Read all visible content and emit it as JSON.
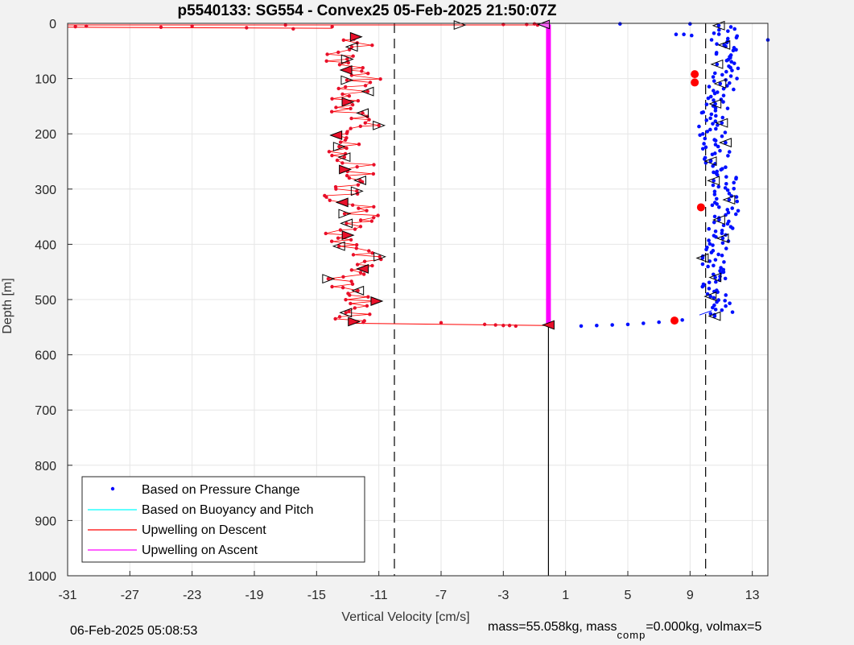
{
  "chart_data": {
    "type": "scatter",
    "title": "p5540133: SG554 - Convex25 05-Feb-2025 21:50:07Z",
    "xlabel": "Vertical Velocity [cm/s]",
    "ylabel": "Depth [m]",
    "xlim": [
      -31,
      14
    ],
    "ylim": [
      0,
      1000
    ],
    "y_reversed": true,
    "grid": true,
    "x_ticks": [
      -31,
      -27,
      -23,
      -19,
      -15,
      -11,
      -7,
      -3,
      1,
      5,
      9,
      13
    ],
    "y_ticks": [
      0,
      100,
      200,
      300,
      400,
      500,
      600,
      700,
      800,
      900,
      1000
    ],
    "legend_location": "bottom-left",
    "legend": [
      {
        "label": "Based on Pressure Change",
        "color": "#0000ff",
        "style": "dot"
      },
      {
        "label": "Based on Buoyancy and Pitch",
        "color": "#00ffff",
        "style": "line"
      },
      {
        "label": "Upwelling on Descent",
        "color": "#ff0000",
        "style": "line"
      },
      {
        "label": "Upwelling on Ascent",
        "color": "#ff00ff",
        "style": "line"
      }
    ],
    "reference_lines_x": [
      -10,
      10
    ],
    "descent_mean_x": -12.7,
    "descent_amplitude": 1.2,
    "ascent_mean_x": 10.9,
    "ascent_amplitude": 0.9,
    "surface_descent_points": [
      {
        "x": -30.5,
        "y": 6
      },
      {
        "x": -29.8,
        "y": 5
      },
      {
        "x": -25,
        "y": 7
      },
      {
        "x": -23,
        "y": 5
      },
      {
        "x": -19.5,
        "y": 8
      },
      {
        "x": -17,
        "y": 3
      },
      {
        "x": -16.5,
        "y": 10
      },
      {
        "x": -14,
        "y": 6
      },
      {
        "x": -3,
        "y": 2
      },
      {
        "x": -1.5,
        "y": 2
      },
      {
        "x": -1,
        "y": 1
      },
      {
        "x": -0.8,
        "y": 3
      }
    ],
    "bottom_descent_points": [
      {
        "x": -12,
        "y": 541
      },
      {
        "x": -7,
        "y": 542
      },
      {
        "x": -4.2,
        "y": 545
      },
      {
        "x": -3.5,
        "y": 546
      },
      {
        "x": -3,
        "y": 547
      },
      {
        "x": -2.6,
        "y": 547
      },
      {
        "x": -2.2,
        "y": 548
      }
    ],
    "ascent_bottom_points": [
      {
        "x": 2,
        "y": 548
      },
      {
        "x": 3,
        "y": 547
      },
      {
        "x": 4,
        "y": 546
      },
      {
        "x": 5,
        "y": 545
      },
      {
        "x": 6,
        "y": 543
      },
      {
        "x": 7,
        "y": 541
      },
      {
        "x": 8,
        "y": 538
      },
      {
        "x": 8.5,
        "y": 537
      }
    ],
    "ascent_surface_points": [
      {
        "x": 4.5,
        "y": 1
      },
      {
        "x": 9,
        "y": 1
      },
      {
        "x": 8.1,
        "y": 20
      },
      {
        "x": 8.6,
        "y": 20
      },
      {
        "x": 9.1,
        "y": 22
      },
      {
        "x": 14,
        "y": 30
      }
    ],
    "large_markers": [
      {
        "x": 9.3,
        "y": 92
      },
      {
        "x": 9.3,
        "y": 107
      },
      {
        "x": 9.7,
        "y": 333
      },
      {
        "x": 8,
        "y": 538
      }
    ],
    "upwelling_ascent_x": -0.1,
    "upwelling_ascent_y": [
      2,
      547
    ],
    "upwelling_descent_surface": {
      "x_from": -31,
      "x_to": -0.1,
      "y": 3
    },
    "upwelling_descent_bottom": {
      "x_from": -12.5,
      "x_to": -0.1,
      "y": 543
    }
  },
  "footer": {
    "timestamp": "06-Feb-2025 05:08:53",
    "mass_text": "mass=55.058kg, mass",
    "mass_sub": "comp",
    "mass_text2": "=0.000kg, volmax=5"
  }
}
